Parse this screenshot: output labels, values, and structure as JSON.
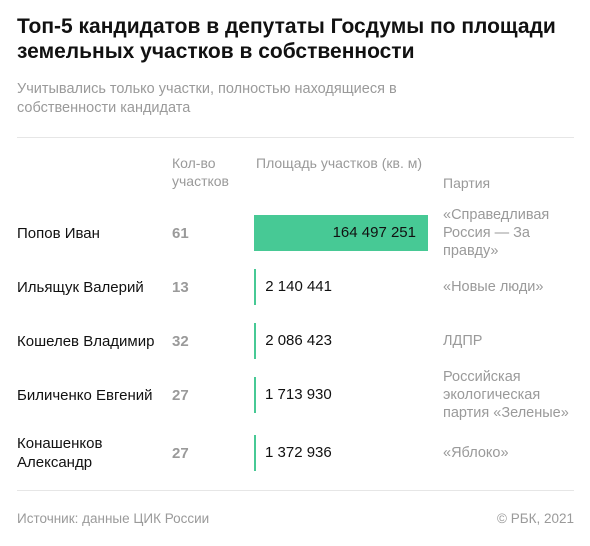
{
  "title": "Топ-5 кандидатов в депутаты Госдумы по площади земельных участков в собственности",
  "subtitle": "Учитывались только участки, полностью находящиеся в собственности кандидата",
  "headers": {
    "count": "Кол-во участков",
    "area": "Площадь участков (кв. м)",
    "party": "Партия"
  },
  "chart_data": {
    "type": "table",
    "columns": [
      "Кол-во участков",
      "Площадь участков (кв. м)",
      "Партия"
    ],
    "categories": [
      "Попов Иван",
      "Ильящук Валерий",
      "Кошелев Владимир",
      "Биличенко Евгений",
      "Конашенков Александр"
    ],
    "rows": [
      {
        "name": "Попов Иван",
        "count": "61",
        "area": 164497251,
        "area_label": "164 497 251",
        "party": "«Справедливая Россия — За правду»"
      },
      {
        "name": "Ильящук Валерий",
        "count": "13",
        "area": 2140441,
        "area_label": "2 140 441",
        "party": "«Новые люди»"
      },
      {
        "name": "Кошелев Владимир",
        "count": "32",
        "area": 2086423,
        "area_label": "2 086 423",
        "party": "ЛДПР"
      },
      {
        "name": "Биличенко Евгений",
        "count": "27",
        "area": 1713930,
        "area_label": "1 713 930",
        "party": "Российская экологическая партия «Зеленые»"
      },
      {
        "name": "Конашенков Александр",
        "count": "27",
        "area": 1372936,
        "area_label": "1 372 936",
        "party": "«Яблоко»"
      }
    ],
    "bar_color": "#47c995"
  },
  "footer": {
    "source": "Источник:  данные ЦИК России",
    "copyright": "© РБК, 2021"
  }
}
